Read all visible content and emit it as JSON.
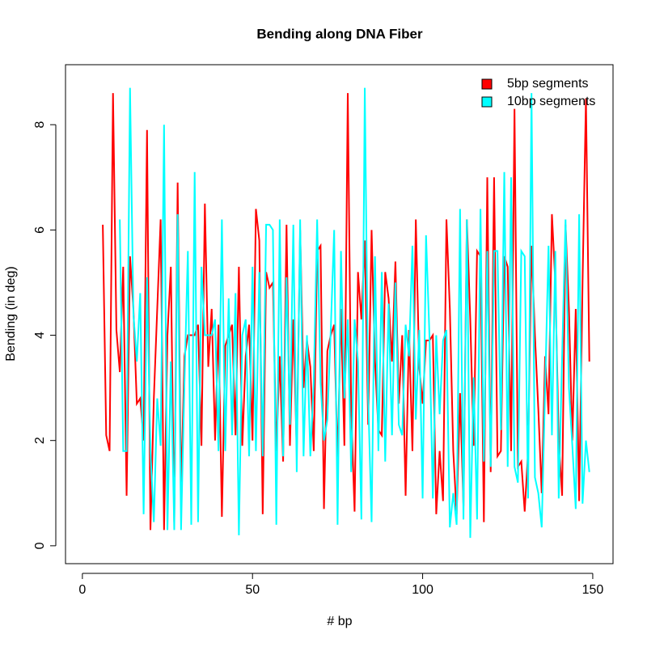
{
  "chart_data": {
    "type": "line",
    "title": "Bending along DNA Fiber",
    "x_label": "# bp",
    "y_label": "Bending (in deg)",
    "xlim": [
      -4.96,
      155.96
    ],
    "ylim": [
      -0.34,
      9.14
    ],
    "xticks": [
      0,
      50,
      100,
      150
    ],
    "yticks": [
      0,
      2,
      4,
      6,
      8
    ],
    "legend": "topright",
    "series": [
      {
        "name": "5bp segments",
        "color": "#ff0000",
        "x": [
          6,
          7,
          8,
          9,
          10,
          11,
          12,
          13,
          14,
          15,
          16,
          17,
          18,
          19,
          20,
          21,
          22,
          23,
          24,
          25,
          26,
          27,
          28,
          29,
          30,
          31,
          32,
          33,
          34,
          35,
          36,
          37,
          38,
          39,
          40,
          41,
          42,
          43,
          44,
          45,
          46,
          47,
          48,
          49,
          50,
          51,
          52,
          53,
          54,
          55,
          56,
          57,
          58,
          59,
          60,
          61,
          62,
          63,
          64,
          65,
          66,
          67,
          68,
          69,
          70,
          71,
          72,
          73,
          74,
          75,
          76,
          77,
          78,
          79,
          80,
          81,
          82,
          83,
          84,
          85,
          86,
          87,
          88,
          89,
          90,
          91,
          92,
          93,
          94,
          95,
          96,
          97,
          98,
          99,
          100,
          101,
          102,
          103,
          104,
          105,
          106,
          107,
          108,
          109,
          110,
          111,
          112,
          113,
          114,
          115,
          116,
          117,
          118,
          119,
          120,
          121,
          122,
          123,
          124,
          125,
          126,
          127,
          128,
          129,
          130,
          131,
          132,
          133,
          134,
          135,
          136,
          137,
          138,
          139,
          140,
          141,
          142,
          143,
          144,
          145,
          146,
          147,
          148,
          149
        ],
        "values": [
          6.1,
          2.1,
          1.8,
          8.6,
          4.1,
          3.3,
          5.3,
          0.95,
          5.5,
          4.5,
          2.7,
          2.8,
          2.0,
          7.9,
          0.3,
          2.8,
          4.5,
          6.2,
          0.3,
          4.0,
          5.3,
          0.45,
          6.9,
          1.0,
          3.6,
          4.0,
          4.0,
          4.0,
          4.2,
          1.9,
          6.5,
          3.4,
          4.5,
          2.0,
          4.2,
          0.55,
          3.8,
          4.0,
          4.2,
          2.1,
          5.3,
          1.9,
          3.6,
          4.2,
          2.0,
          6.4,
          5.8,
          0.6,
          5.2,
          4.9,
          5.0,
          1.8,
          3.6,
          1.6,
          6.1,
          1.9,
          4.3,
          1.8,
          6.0,
          3.0,
          3.9,
          3.4,
          1.8,
          5.6,
          5.7,
          0.7,
          3.7,
          4.0,
          4.2,
          1.6,
          4.5,
          1.9,
          8.6,
          2.6,
          0.65,
          5.2,
          4.3,
          5.8,
          2.3,
          6.0,
          3.5,
          2.2,
          2.1,
          5.2,
          4.7,
          3.5,
          5.4,
          2.7,
          4.0,
          0.95,
          4.1,
          1.8,
          6.2,
          3.4,
          2.7,
          3.9,
          3.9,
          4.0,
          0.6,
          1.8,
          0.85,
          6.2,
          4.5,
          1.8,
          0.6,
          2.9,
          0.75,
          6.2,
          4.3,
          1.9,
          5.6,
          5.5,
          0.45,
          7.0,
          1.4,
          7.0,
          1.7,
          1.8,
          5.5,
          5.3,
          1.8,
          8.3,
          1.5,
          1.6,
          0.65,
          1.8,
          5.7,
          4.0,
          2.6,
          1.0,
          3.6,
          2.5,
          6.3,
          5.0,
          2.0,
          0.95,
          6.1,
          4.5,
          2.0,
          4.5,
          0.85,
          5.0,
          8.5,
          3.5
        ]
      },
      {
        "name": "10bp segments",
        "color": "#00ffff",
        "x": [
          11,
          12,
          13,
          14,
          15,
          16,
          17,
          18,
          19,
          20,
          21,
          22,
          23,
          24,
          25,
          26,
          27,
          28,
          29,
          30,
          31,
          32,
          33,
          34,
          35,
          36,
          37,
          38,
          39,
          40,
          41,
          42,
          43,
          44,
          45,
          46,
          47,
          48,
          49,
          50,
          51,
          52,
          53,
          54,
          55,
          56,
          57,
          58,
          59,
          60,
          61,
          62,
          63,
          64,
          65,
          66,
          67,
          68,
          69,
          70,
          71,
          72,
          73,
          74,
          75,
          76,
          77,
          78,
          79,
          80,
          81,
          82,
          83,
          84,
          85,
          86,
          87,
          88,
          89,
          90,
          91,
          92,
          93,
          94,
          95,
          96,
          97,
          98,
          99,
          100,
          101,
          102,
          103,
          104,
          105,
          106,
          107,
          108,
          109,
          110,
          111,
          112,
          113,
          114,
          115,
          116,
          117,
          118,
          119,
          120,
          121,
          122,
          123,
          124,
          125,
          126,
          127,
          128,
          129,
          130,
          131,
          132,
          133,
          134,
          135,
          136,
          137,
          138,
          139,
          140,
          141,
          142,
          143,
          144,
          145,
          146,
          147,
          148,
          149
        ],
        "values": [
          6.2,
          1.8,
          1.8,
          8.7,
          4.4,
          3.5,
          4.8,
          0.6,
          5.1,
          1.8,
          0.45,
          2.8,
          1.9,
          8.0,
          0.3,
          3.5,
          0.3,
          6.3,
          0.3,
          3.1,
          5.6,
          0.4,
          7.1,
          0.45,
          5.3,
          4.0,
          4.0,
          4.0,
          4.3,
          1.8,
          6.2,
          1.8,
          4.7,
          2.1,
          4.8,
          0.2,
          4.0,
          4.3,
          1.7,
          5.3,
          1.8,
          5.2,
          1.7,
          6.1,
          6.1,
          6.0,
          0.4,
          6.2,
          1.7,
          5.1,
          2.3,
          6.1,
          1.4,
          6.2,
          1.7,
          4.0,
          1.7,
          3.1,
          6.2,
          3.1,
          2.0,
          2.4,
          4.1,
          6.0,
          0.4,
          5.6,
          2.8,
          4.3,
          1.4,
          4.3,
          3.5,
          0.5,
          8.7,
          2.8,
          0.45,
          5.5,
          1.8,
          5.2,
          1.6,
          4.6,
          2.1,
          5.0,
          2.3,
          2.1,
          4.2,
          3.6,
          5.7,
          2.4,
          4.1,
          0.9,
          5.9,
          4.0,
          0.9,
          4.0,
          2.5,
          3.9,
          4.1,
          0.35,
          1.0,
          0.4,
          6.4,
          0.5,
          6.2,
          0.15,
          3.2,
          0.5,
          6.4,
          1.6,
          5.6,
          1.5,
          5.6,
          5.6,
          2.2,
          7.1,
          1.5,
          7.0,
          1.5,
          1.2,
          5.6,
          5.5,
          0.9,
          8.6,
          1.3,
          1.0,
          0.35,
          3.0,
          5.7,
          2.1,
          5.6,
          0.9,
          3.6,
          6.2,
          3.0,
          1.9,
          0.7,
          6.3,
          0.8,
          2.0,
          1.4
        ]
      }
    ]
  }
}
